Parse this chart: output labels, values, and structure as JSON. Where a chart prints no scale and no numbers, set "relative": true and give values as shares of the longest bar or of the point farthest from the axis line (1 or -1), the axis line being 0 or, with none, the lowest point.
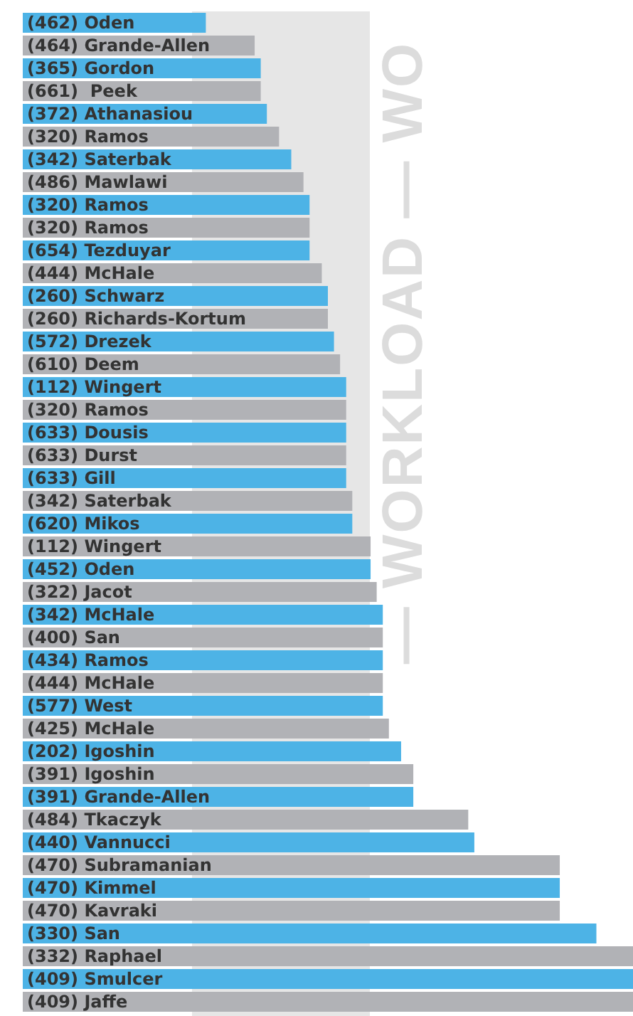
{
  "chart_data": {
    "type": "bar",
    "orientation": "horizontal",
    "relative": true,
    "categories": [
      "(462) Oden",
      "(464) Grande-Allen",
      "(365) Gordon",
      "(661)  Peek",
      "(372) Athanasiou",
      "(320) Ramos",
      "(342) Saterbak",
      "(486) Mawlawi",
      "(320) Ramos",
      "(320) Ramos",
      "(654) Tezduyar",
      "(444) McHale",
      "(260) Schwarz",
      "(260) Richards-Kortum",
      "(572) Drezek",
      "(610) Deem",
      "(112) Wingert",
      "(320) Ramos",
      "(633) Dousis",
      "(633) Durst",
      "(633) Gill",
      "(342) Saterbak",
      "(620) Mikos",
      "(112) Wingert",
      "(452) Oden",
      "(322) Jacot",
      "(342) McHale",
      "(400) San",
      "(434) Ramos",
      "(444) McHale",
      "(577) West",
      "(425) McHale",
      "(202) Igoshin",
      "(391) Igoshin",
      "(391) Grande-Allen",
      "(484) Tkaczyk",
      "(440) Vannucci",
      "(470) Subramanian",
      "(470) Kimmel",
      "(470) Kavraki",
      "(330) San",
      "(332) Raphael",
      "(409) Smulcer",
      "(409) Jaffe"
    ],
    "values": [
      0.3,
      0.38,
      0.39,
      0.39,
      0.4,
      0.42,
      0.44,
      0.46,
      0.47,
      0.47,
      0.47,
      0.49,
      0.5,
      0.5,
      0.51,
      0.52,
      0.53,
      0.53,
      0.53,
      0.53,
      0.53,
      0.54,
      0.54,
      0.57,
      0.57,
      0.58,
      0.59,
      0.59,
      0.59,
      0.59,
      0.59,
      0.6,
      0.62,
      0.64,
      0.64,
      0.73,
      0.74,
      0.88,
      0.88,
      0.88,
      0.94,
      1,
      1,
      1
    ],
    "colors": [
      "#4db3e6",
      "#b1b2b6",
      "#4db3e6",
      "#b1b2b6",
      "#4db3e6",
      "#b1b2b6",
      "#4db3e6",
      "#b1b2b6",
      "#4db3e6",
      "#b1b2b6",
      "#4db3e6",
      "#b1b2b6",
      "#4db3e6",
      "#b1b2b6",
      "#4db3e6",
      "#b1b2b6",
      "#4db3e6",
      "#b1b2b6",
      "#4db3e6",
      "#b1b2b6",
      "#4db3e6",
      "#b1b2b6",
      "#4db3e6",
      "#b1b2b6",
      "#4db3e6",
      "#b1b2b6",
      "#4db3e6",
      "#b1b2b6",
      "#4db3e6",
      "#b1b2b6",
      "#4db3e6",
      "#b1b2b6",
      "#4db3e6",
      "#b1b2b6",
      "#4db3e6",
      "#b1b2b6",
      "#4db3e6",
      "#b1b2b6",
      "#4db3e6",
      "#b1b2b6",
      "#4db3e6",
      "#b1b2b6",
      "#4db3e6",
      "#b1b2b6"
    ],
    "annotations": [
      "— WORKLOAD — WO"
    ]
  }
}
